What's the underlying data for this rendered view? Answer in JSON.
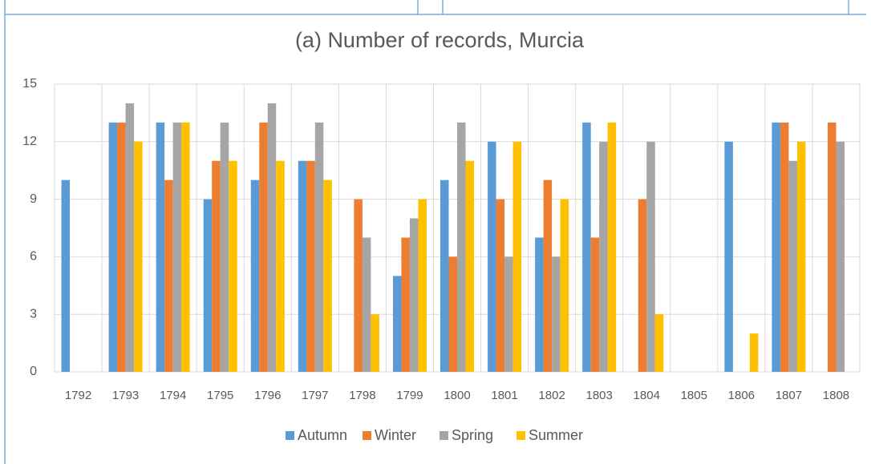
{
  "chart_data": {
    "type": "bar",
    "title": "(a) Number of records, Murcia",
    "categories": [
      "1792",
      "1793",
      "1794",
      "1795",
      "1796",
      "1797",
      "1798",
      "1799",
      "1800",
      "1801",
      "1802",
      "1803",
      "1804",
      "1805",
      "1806",
      "1807",
      "1808"
    ],
    "series": [
      {
        "name": "Autumn",
        "color": "#5b9bd5",
        "values": [
          10,
          13,
          13,
          9,
          10,
          11,
          null,
          5,
          10,
          12,
          7,
          13,
          null,
          null,
          12,
          13,
          null
        ]
      },
      {
        "name": "Winter",
        "color": "#ed7d31",
        "values": [
          null,
          13,
          10,
          11,
          13,
          11,
          9,
          7,
          6,
          9,
          10,
          7,
          9,
          null,
          null,
          13,
          13
        ]
      },
      {
        "name": "Spring",
        "color": "#a5a5a5",
        "values": [
          null,
          14,
          13,
          13,
          14,
          13,
          7,
          8,
          13,
          6,
          6,
          12,
          12,
          null,
          null,
          11,
          12
        ]
      },
      {
        "name": "Summer",
        "color": "#ffc000",
        "values": [
          null,
          12,
          13,
          11,
          11,
          10,
          3,
          9,
          11,
          12,
          9,
          13,
          3,
          null,
          2,
          12,
          null
        ]
      }
    ],
    "ylim": [
      0,
      15
    ],
    "yticks": [
      0,
      3,
      6,
      9,
      12,
      15
    ],
    "grid": true,
    "legend": "bottom"
  }
}
